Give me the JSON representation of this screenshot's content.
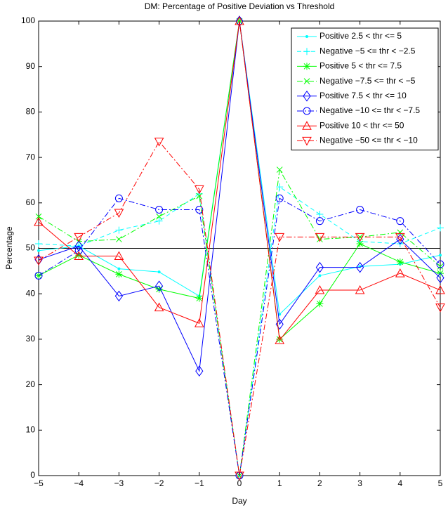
{
  "chart_data": {
    "type": "line",
    "title": "DM: Percentage of Positive Deviation vs Threshold",
    "xlabel": "Day",
    "ylabel": "Percentage",
    "x": [
      -5,
      -4,
      -3,
      -2,
      -1,
      0,
      1,
      2,
      3,
      4,
      5
    ],
    "xlim": [
      -5,
      5
    ],
    "xticks": [
      {
        "value": -5,
        "label": "−5"
      },
      {
        "value": -4,
        "label": "−4"
      },
      {
        "value": -3,
        "label": "−3"
      },
      {
        "value": -2,
        "label": "−2"
      },
      {
        "value": -1,
        "label": "−1"
      },
      0,
      1,
      2,
      3,
      4,
      5
    ],
    "ylim": [
      0,
      100
    ],
    "yticks": [
      0,
      10,
      20,
      30,
      40,
      50,
      60,
      70,
      80,
      90,
      100
    ],
    "hline": 50,
    "legend": "upper right",
    "series": [
      {
        "name": "Positive 2.5 < thr <= 5",
        "color": "#00ffff",
        "linestyle": "solid",
        "marker": "point",
        "values": [
          49.5,
          50.5,
          45.5,
          44.8,
          39.5,
          100,
          35.5,
          44,
          46,
          46.5,
          48.5
        ]
      },
      {
        "name": "Negative −5 <= thr < −2.5",
        "color": "#00ffff",
        "linestyle": "dashed",
        "marker": "plus",
        "values": [
          51,
          50.5,
          54,
          56,
          62,
          0,
          63.5,
          57.5,
          51.5,
          51,
          54.5
        ]
      },
      {
        "name": "Positive 5 < thr <= 7.5",
        "color": "#00ff00",
        "linestyle": "solid",
        "marker": "star",
        "values": [
          44,
          48.5,
          44.3,
          41,
          39,
          100,
          30,
          37.8,
          51,
          47,
          44.5
        ]
      },
      {
        "name": "Negative −7.5 <= thr < −5",
        "color": "#00ff00",
        "linestyle": "dashdot",
        "marker": "x",
        "values": [
          57,
          51.5,
          52,
          57,
          61.5,
          0,
          67.3,
          52,
          52.5,
          53.5,
          46
        ]
      },
      {
        "name": "Positive 7.5 < thr <= 10",
        "color": "#0000ff",
        "linestyle": "solid",
        "marker": "diamond",
        "values": [
          47.5,
          50.5,
          39.5,
          41.7,
          23,
          100,
          33.3,
          45.8,
          45.8,
          52,
          43.5
        ]
      },
      {
        "name": "Negative −10 <= thr < −7.5",
        "color": "#0000ff",
        "linestyle": "dashdot",
        "marker": "circle",
        "values": [
          44,
          49.5,
          61,
          58.5,
          58.5,
          0,
          61,
          56,
          58.5,
          56,
          46.5
        ]
      },
      {
        "name": "Positive 10 < thr <= 50",
        "color": "#ff0000",
        "linestyle": "solid",
        "marker": "triangle-up",
        "values": [
          55.8,
          48.3,
          48.3,
          37,
          33.5,
          100,
          29.8,
          40.8,
          40.8,
          44.5,
          40.8
        ]
      },
      {
        "name": "Negative −50 <= thr < −10",
        "color": "#ff0000",
        "linestyle": "dashdot",
        "marker": "triangle-down",
        "values": [
          47.3,
          52.5,
          57.8,
          73.5,
          63,
          0,
          52.5,
          52.5,
          52.5,
          52.5,
          37
        ]
      }
    ]
  }
}
